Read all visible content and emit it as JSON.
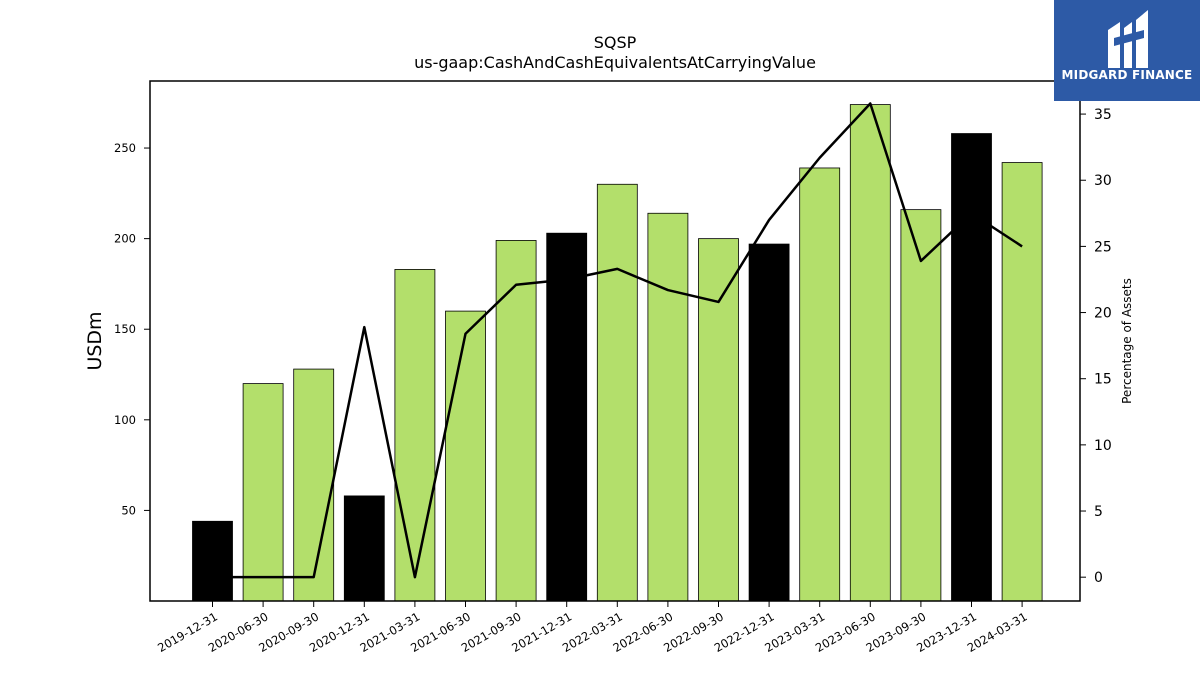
{
  "brand": {
    "name": "MIDGARD FINANCE",
    "bg_color": "#2d5aa6"
  },
  "chart_data": {
    "type": "bar",
    "title": "SQSP",
    "subtitle": "us-gaap:CashAndCashEquivalentsAtCarryingValue",
    "ylabel": "USDm",
    "ylabel_right": "Percentage of Assets",
    "xlabel": "",
    "categories": [
      "2019-12-31",
      "2020-06-30",
      "2020-09-30",
      "2020-12-31",
      "2021-03-31",
      "2021-06-30",
      "2021-09-30",
      "2021-12-31",
      "2022-03-31",
      "2022-06-30",
      "2022-09-30",
      "2022-12-31",
      "2023-03-31",
      "2023-06-30",
      "2023-09-30",
      "2023-12-31",
      "2024-03-31"
    ],
    "series": [
      {
        "type": "bar",
        "values": [
          44,
          120,
          128,
          58,
          183,
          160,
          199,
          203,
          230,
          214,
          200,
          197,
          239,
          274,
          216,
          258,
          242
        ],
        "colors": [
          "#000000",
          "#b3df6b",
          "#b3df6b",
          "#000000",
          "#b3df6b",
          "#b3df6b",
          "#b3df6b",
          "#000000",
          "#b3df6b",
          "#b3df6b",
          "#b3df6b",
          "#000000",
          "#b3df6b",
          "#b3df6b",
          "#b3df6b",
          "#000000",
          "#b3df6b"
        ]
      },
      {
        "type": "line",
        "axis": "right",
        "color": "#000000",
        "values": [
          0,
          0,
          0,
          18.9,
          0,
          18.4,
          22.1,
          22.5,
          23.3,
          21.7,
          20.8,
          27.0,
          31.7,
          35.8,
          23.9,
          27.5,
          25.0
        ]
      }
    ],
    "ylim": [
      0,
      287
    ],
    "yticks": [
      50,
      100,
      150,
      200,
      250
    ],
    "ylim_right": [
      -1.8,
      37.5
    ],
    "yticks_right": [
      0,
      5,
      10,
      15,
      20,
      25,
      30,
      35
    ],
    "grid": false,
    "legend": "none"
  }
}
